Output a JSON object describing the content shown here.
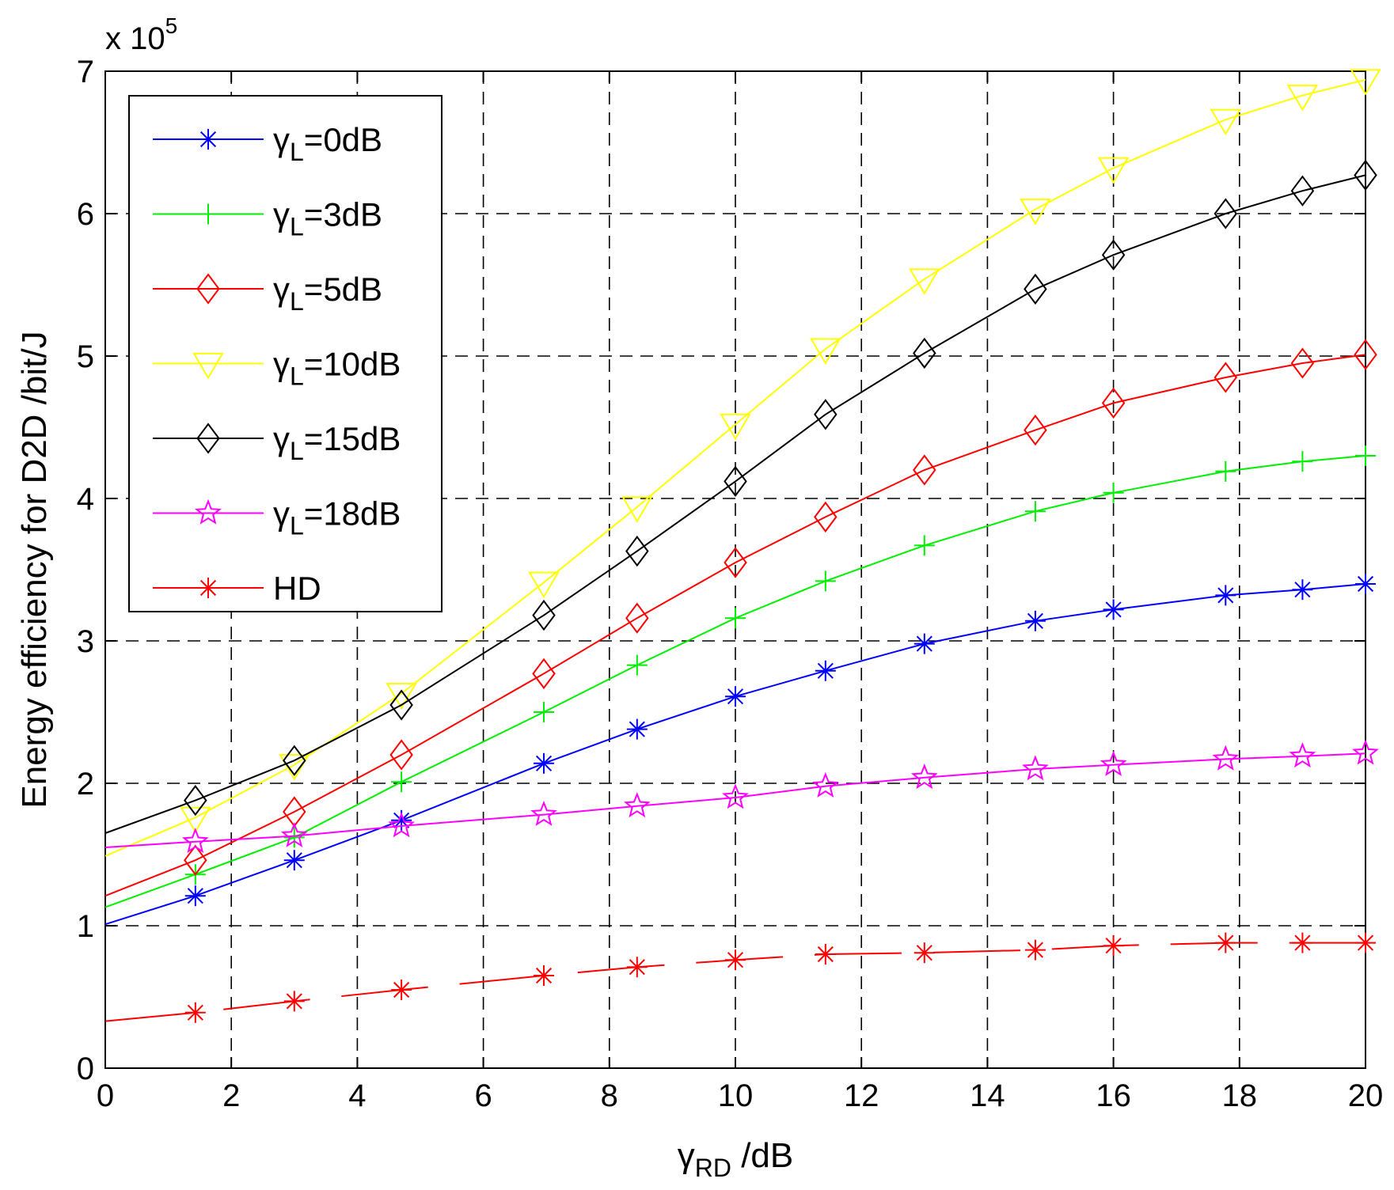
{
  "chart_data": {
    "type": "line",
    "title": "",
    "xlabel": {
      "symbol": "γ",
      "subscript": "RD",
      "rest": " /dB"
    },
    "ylabel": "Energy efficiency for D2D /bit/J",
    "y_multiplier": {
      "base": "x 10",
      "exponent": "5"
    },
    "xlim": [
      0,
      20
    ],
    "ylim": [
      0,
      7
    ],
    "xticks": [
      0,
      2,
      4,
      6,
      8,
      10,
      12,
      14,
      16,
      18,
      20
    ],
    "yticks": [
      0,
      1,
      2,
      3,
      4,
      5,
      6,
      7
    ],
    "grid": "dashed",
    "legend_position": "top-left",
    "series": [
      {
        "name": "γL=0dB",
        "label": {
          "symbol": "γ",
          "subscript": "L",
          "rest": "=0dB"
        },
        "color": "#0000ff",
        "marker": "asterisk",
        "linestyle": "solid",
        "line_x": [
          0,
          1.43,
          3,
          4.7,
          6.96,
          8.44,
          10,
          11.43,
          13,
          14.76,
          16,
          17.78,
          19,
          20
        ],
        "line_y": [
          1.01,
          1.21,
          1.46,
          1.74,
          2.14,
          2.38,
          2.61,
          2.79,
          2.98,
          3.14,
          3.22,
          3.32,
          3.36,
          3.4
        ],
        "marker_x": [
          1.43,
          3,
          4.7,
          6.96,
          8.44,
          10,
          11.43,
          13,
          14.76,
          16,
          17.78,
          19,
          20
        ],
        "marker_y": [
          1.21,
          1.46,
          1.74,
          2.14,
          2.38,
          2.61,
          2.79,
          2.98,
          3.14,
          3.22,
          3.32,
          3.36,
          3.4
        ]
      },
      {
        "name": "γL=3dB",
        "label": {
          "symbol": "γ",
          "subscript": "L",
          "rest": "=3dB"
        },
        "color": "#00ee00",
        "marker": "plus",
        "linestyle": "solid",
        "line_x": [
          0,
          1.43,
          3,
          4.7,
          6.96,
          8.44,
          10,
          11.43,
          13,
          14.76,
          16,
          17.78,
          19,
          20
        ],
        "line_y": [
          1.13,
          1.36,
          1.62,
          2.01,
          2.5,
          2.83,
          3.16,
          3.42,
          3.67,
          3.91,
          4.04,
          4.19,
          4.26,
          4.3
        ],
        "marker_x": [
          1.43,
          3,
          4.7,
          6.96,
          8.44,
          10,
          11.43,
          13,
          14.76,
          16,
          17.78,
          19,
          20
        ],
        "marker_y": [
          1.36,
          1.62,
          2.01,
          2.5,
          2.83,
          3.16,
          3.42,
          3.67,
          3.91,
          4.04,
          4.19,
          4.26,
          4.3
        ]
      },
      {
        "name": "γL=5dB",
        "label": {
          "symbol": "γ",
          "subscript": "L",
          "rest": "=5dB"
        },
        "color": "#ff0000",
        "marker": "diamond",
        "linestyle": "solid",
        "line_x": [
          0,
          1.43,
          3,
          4.7,
          6.96,
          8.44,
          10,
          11.43,
          13,
          14.76,
          16,
          17.78,
          19,
          20
        ],
        "line_y": [
          1.21,
          1.46,
          1.8,
          2.2,
          2.77,
          3.16,
          3.55,
          3.87,
          4.2,
          4.48,
          4.67,
          4.85,
          4.95,
          5.01
        ],
        "marker_x": [
          1.43,
          3,
          4.7,
          6.96,
          8.44,
          10,
          11.43,
          13,
          14.76,
          16,
          17.78,
          19,
          20
        ],
        "marker_y": [
          1.46,
          1.8,
          2.2,
          2.77,
          3.16,
          3.55,
          3.87,
          4.2,
          4.48,
          4.67,
          4.85,
          4.95,
          5.01
        ]
      },
      {
        "name": "γL=10dB",
        "label": {
          "symbol": "γ",
          "subscript": "L",
          "rest": "=10dB"
        },
        "color": "#ffff00",
        "marker": "triangle-down",
        "linestyle": "solid",
        "line_x": [
          0,
          1.43,
          3,
          4.7,
          6.96,
          8.44,
          10,
          11.43,
          13,
          14.76,
          16,
          17.78,
          19,
          20
        ],
        "line_y": [
          1.49,
          1.76,
          2.13,
          2.63,
          3.41,
          3.94,
          4.52,
          5.05,
          5.54,
          6.03,
          6.32,
          6.66,
          6.83,
          6.94
        ],
        "marker_x": [
          1.43,
          3,
          4.7,
          6.96,
          8.44,
          10,
          11.43,
          13,
          14.76,
          16,
          17.78,
          19,
          20
        ],
        "marker_y": [
          1.76,
          2.13,
          2.63,
          3.41,
          3.94,
          4.52,
          5.05,
          5.54,
          6.03,
          6.32,
          6.66,
          6.83,
          6.94
        ]
      },
      {
        "name": "γL=15dB",
        "label": {
          "symbol": "γ",
          "subscript": "L",
          "rest": "=15dB"
        },
        "color": "#000000",
        "marker": "diamond",
        "linestyle": "solid",
        "line_x": [
          0,
          1.43,
          3,
          4.7,
          6.96,
          8.44,
          10,
          11.43,
          13,
          14.76,
          16,
          17.78,
          19,
          20
        ],
        "line_y": [
          1.65,
          1.88,
          2.16,
          2.55,
          3.18,
          3.63,
          4.12,
          4.59,
          5.02,
          5.47,
          5.71,
          6.0,
          6.16,
          6.27
        ],
        "marker_x": [
          1.43,
          3,
          4.7,
          6.96,
          8.44,
          10,
          11.43,
          13,
          14.76,
          16,
          17.78,
          19,
          20
        ],
        "marker_y": [
          1.88,
          2.16,
          2.55,
          3.18,
          3.63,
          4.12,
          4.59,
          5.02,
          5.47,
          5.71,
          6.0,
          6.16,
          6.27
        ]
      },
      {
        "name": "γL=18dB",
        "label": {
          "symbol": "γ",
          "subscript": "L",
          "rest": "=18dB"
        },
        "color": "#ff00ff",
        "marker": "star",
        "linestyle": "solid",
        "line_x": [
          0,
          1.43,
          3,
          4.7,
          6.96,
          8.44,
          10,
          11.43,
          13,
          14.76,
          16,
          17.78,
          19,
          20
        ],
        "line_y": [
          1.55,
          1.59,
          1.63,
          1.7,
          1.78,
          1.84,
          1.9,
          1.98,
          2.04,
          2.1,
          2.13,
          2.17,
          2.19,
          2.21
        ],
        "marker_x": [
          1.43,
          3,
          4.7,
          6.96,
          8.44,
          10,
          11.43,
          13,
          14.76,
          16,
          17.78,
          19,
          20
        ],
        "marker_y": [
          1.59,
          1.63,
          1.7,
          1.78,
          1.84,
          1.9,
          1.98,
          2.04,
          2.1,
          2.13,
          2.17,
          2.19,
          2.21
        ]
      },
      {
        "name": "HD",
        "label": {
          "symbol": "",
          "subscript": "",
          "rest": "HD"
        },
        "color": "#ff0000",
        "marker": "asterisk",
        "linestyle": "dashed",
        "line_x": [
          0,
          1.43,
          3,
          4.7,
          6.96,
          8.44,
          10,
          11.43,
          13,
          14.76,
          16,
          17.78,
          19,
          20
        ],
        "line_y": [
          0.33,
          0.39,
          0.47,
          0.55,
          0.65,
          0.71,
          0.76,
          0.8,
          0.81,
          0.83,
          0.86,
          0.88,
          0.88,
          0.88
        ],
        "marker_x": [
          1.43,
          3,
          4.7,
          6.96,
          8.44,
          10,
          11.43,
          13,
          14.76,
          16,
          17.78,
          19,
          20
        ],
        "marker_y": [
          0.39,
          0.47,
          0.55,
          0.65,
          0.71,
          0.76,
          0.8,
          0.81,
          0.83,
          0.86,
          0.88,
          0.88,
          0.88
        ]
      }
    ]
  }
}
